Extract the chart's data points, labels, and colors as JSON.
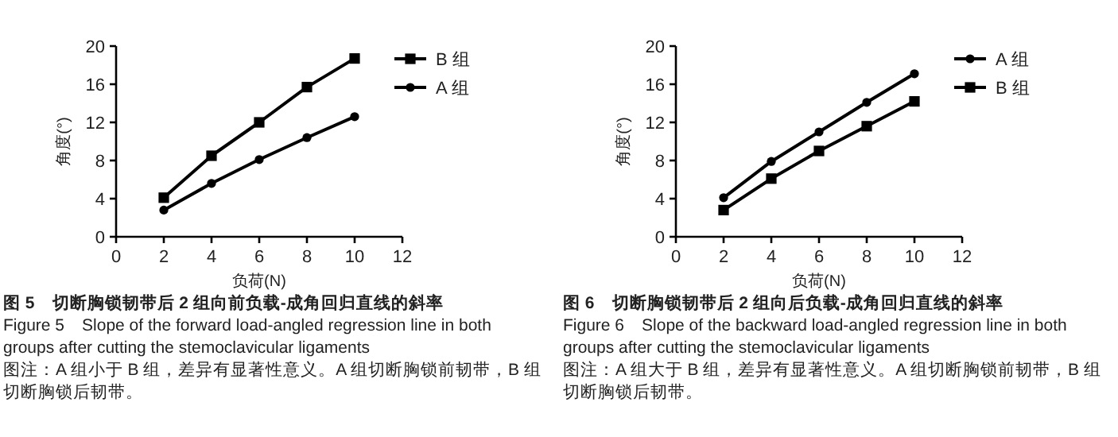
{
  "chart_data": [
    {
      "type": "line",
      "title": "图 5　切断胸锁韧带后 2 组向前负载-成角回归直线的斜率",
      "subtitle": "Figure 5　Slope of the forward load-angled regression line in both groups after cutting the stemoclavicular ligaments",
      "annotations": [
        "图注：A 组小于 B 组，差异有显著性意义。A 组切断胸锁前韧带，B 组切断胸锁后韧带。"
      ],
      "xlabel": "负荷(N)",
      "ylabel": "角度(°)",
      "x": [
        2,
        4,
        6,
        8,
        10
      ],
      "xlim": [
        0,
        12
      ],
      "xticks": [
        0,
        2,
        4,
        6,
        8,
        10,
        12
      ],
      "ylim": [
        0,
        20
      ],
      "yticks": [
        0,
        4,
        8,
        12,
        16,
        20
      ],
      "grid": false,
      "legend": "top right",
      "line_style": "solid",
      "series": [
        {
          "name": "B 组",
          "color": "#000000",
          "marker": "square",
          "values": [
            4.1,
            8.5,
            12.0,
            15.7,
            18.7
          ]
        },
        {
          "name": "A 组",
          "color": "#000000",
          "marker": "circle",
          "values": [
            2.8,
            5.6,
            8.1,
            10.4,
            12.6
          ]
        }
      ]
    },
    {
      "type": "line",
      "title": "图 6　切断胸锁韧带后 2 组向后负载-成角回归直线的斜率",
      "subtitle": "Figure 6　Slope of the backward load-angled regression line in both groups after cutting the stemoclavicular ligaments",
      "annotations": [
        "图注：A 组大于 B 组，差异有显著性意义。A 组切断胸锁前韧带，B 组切断胸锁后韧带。"
      ],
      "xlabel": "负荷(N)",
      "ylabel": "角度(°)",
      "x": [
        2,
        4,
        6,
        8,
        10
      ],
      "xlim": [
        0,
        12
      ],
      "xticks": [
        0,
        2,
        4,
        6,
        8,
        10,
        12
      ],
      "ylim": [
        0,
        20
      ],
      "yticks": [
        0,
        4,
        8,
        12,
        16,
        20
      ],
      "grid": false,
      "legend": "top right",
      "line_style": "solid",
      "series": [
        {
          "name": "A 组",
          "color": "#000000",
          "marker": "circle",
          "values": [
            4.1,
            7.9,
            11.0,
            14.1,
            17.1
          ]
        },
        {
          "name": "B 组",
          "color": "#000000",
          "marker": "square",
          "values": [
            2.8,
            6.1,
            9.0,
            11.6,
            14.2
          ]
        }
      ]
    }
  ]
}
